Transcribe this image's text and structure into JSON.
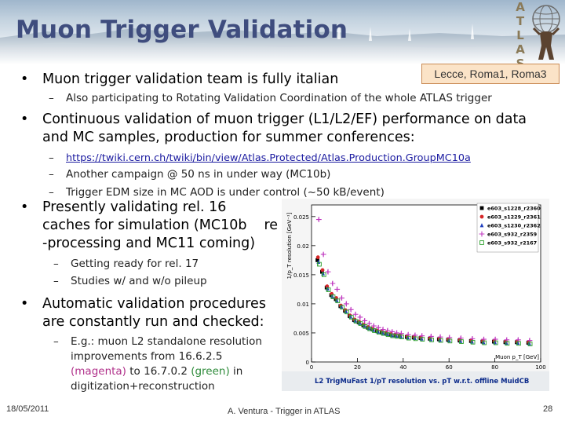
{
  "slide": {
    "title": "Muon Trigger Validation",
    "atlas_letters": [
      "A",
      "T",
      "L",
      "A",
      "S"
    ],
    "tag": "Lecce, Roma1, Roma3",
    "bullets": [
      {
        "text": "Muon trigger validation team is fully italian",
        "subs": [
          {
            "text": "Also participating to Rotating Validation Coordination of the whole ATLAS trigger"
          }
        ]
      },
      {
        "line1": "Continuous validation of muon trigger (L1/L2/EF) performance on data",
        "line2": "and MC samples, production for summer conferences:",
        "subs": [
          {
            "text": "https://twiki.cern.ch/twiki/bin/view/Atlas.Protected/Atlas.Production.GroupMC10a"
          },
          {
            "text": "Another campaign @ 50 ns in under way (MC10b)"
          },
          {
            "text": "Trigger EDM size in MC AOD is under control (~50 kB/event)"
          }
        ]
      },
      {
        "line1": "Presently validating rel. 16",
        "line2": "caches for simulation (MC10b",
        "line2b": "re",
        "line3": "-processing and MC11 coming)",
        "subs": [
          {
            "text": "Getting ready for rel. 17"
          },
          {
            "text": "Studies w/ and w/o pileup"
          }
        ]
      },
      {
        "line1": "Automatic validation procedures",
        "line2": "are constantly run and checked:",
        "sub": {
          "l1": "E.g.: muon L2 standalone resolution",
          "l2": "improvements from 16.6.2.5",
          "l3a": "(magenta)",
          "l3b": " to 16.7.0.2 ",
          "l3c": "(green)",
          "l3d": " in",
          "l4": "digitization+reconstruction"
        }
      }
    ],
    "footer": {
      "date": "18/05/2011",
      "center": "A. Ventura - Trigger in ATLAS",
      "page": "28"
    }
  },
  "colors": {
    "title": "#3f4d7e",
    "tag_bg": "#fbe3c7",
    "tag_border": "#c98a54",
    "plot_bg": "#f5f5f5",
    "caption_bg": "#e9ecef",
    "caption_text": "#0b2a8a"
  },
  "chart_data": {
    "type": "scatter",
    "ylabel": "1/p_T resolution [GeV⁻¹]",
    "xlabel": "Muon p_T [GeV]",
    "caption": "L2 TrigMuFast 1/pT resolution vs. pT w.r.t. offline MuidCB",
    "xlim": [
      0,
      100
    ],
    "ylim": [
      0,
      0.027
    ],
    "yticks": [
      0,
      0.005,
      0.01,
      0.015,
      0.02,
      0.025
    ],
    "ytick_labels": [
      "0",
      "0.005",
      "0.01",
      "0.015",
      "0.02",
      "0.025"
    ],
    "xticks": [
      0,
      20,
      40,
      60,
      80,
      100
    ],
    "xtick_labels": [
      "0",
      "20",
      "40",
      "60",
      "80",
      "100"
    ],
    "legend_position": "top-right",
    "series": [
      {
        "name": "e603_s1228_r2360",
        "color": "#000000",
        "marker": "square",
        "x": [
          3,
          5,
          7,
          9,
          11,
          13,
          15,
          17,
          19,
          21,
          23,
          25,
          27,
          29,
          31,
          33,
          35,
          37,
          39,
          42,
          45,
          48,
          52,
          56,
          60,
          65,
          70,
          75,
          80,
          85,
          90,
          95
        ],
        "y": [
          0.0175,
          0.0155,
          0.0128,
          0.0115,
          0.0108,
          0.0096,
          0.0088,
          0.0079,
          0.0072,
          0.0068,
          0.0063,
          0.0059,
          0.0056,
          0.0053,
          0.0051,
          0.0049,
          0.0047,
          0.0046,
          0.0045,
          0.0043,
          0.0042,
          0.0041,
          0.004,
          0.0039,
          0.0038,
          0.0037,
          0.0036,
          0.0035,
          0.0035,
          0.0034,
          0.0034,
          0.0033
        ]
      },
      {
        "name": "e603_s1229_r2361",
        "color": "#d62728",
        "marker": "circle",
        "x": [
          3,
          5,
          7,
          9,
          11,
          13,
          15,
          17,
          19,
          21,
          23,
          25,
          27,
          29,
          31,
          33,
          35,
          37,
          39,
          42,
          45,
          48,
          52,
          56,
          60,
          65,
          70,
          75,
          80,
          85,
          90,
          95
        ],
        "y": [
          0.018,
          0.0158,
          0.013,
          0.0117,
          0.011,
          0.0097,
          0.0089,
          0.008,
          0.0073,
          0.0069,
          0.0064,
          0.006,
          0.0057,
          0.0054,
          0.0052,
          0.005,
          0.0048,
          0.0047,
          0.0046,
          0.0044,
          0.0043,
          0.0042,
          0.0041,
          0.004,
          0.0039,
          0.0038,
          0.0037,
          0.0036,
          0.0036,
          0.0035,
          0.0035,
          0.0034
        ]
      },
      {
        "name": "e603_s1230_r2362",
        "color": "#1f3fbf",
        "marker": "triangle",
        "x": [
          3,
          5,
          7,
          9,
          11,
          13,
          15,
          17,
          19,
          21,
          23,
          25,
          27,
          29,
          31,
          33,
          35,
          37,
          39,
          42,
          45,
          48,
          52,
          56,
          60,
          65,
          70,
          75,
          80,
          85,
          90,
          95
        ],
        "y": [
          0.0172,
          0.0152,
          0.0126,
          0.0113,
          0.0106,
          0.0095,
          0.0087,
          0.0078,
          0.0071,
          0.0067,
          0.0062,
          0.0058,
          0.0055,
          0.0052,
          0.005,
          0.0048,
          0.0046,
          0.0045,
          0.0044,
          0.0042,
          0.0041,
          0.004,
          0.0039,
          0.0038,
          0.0037,
          0.0036,
          0.0035,
          0.0034,
          0.0034,
          0.0033,
          0.0033,
          0.0032
        ]
      },
      {
        "name": "e603_s932_r2359",
        "color": "#c03ac0",
        "marker": "cross",
        "x": [
          3,
          5,
          7,
          9,
          11,
          13,
          15,
          17,
          19,
          21,
          23,
          25,
          27,
          29,
          31,
          33,
          35,
          37,
          39,
          42,
          45,
          48,
          52,
          56,
          60,
          65,
          70,
          75,
          80,
          85,
          90,
          95
        ],
        "y": [
          0.0245,
          0.0185,
          0.0155,
          0.0135,
          0.0125,
          0.011,
          0.01,
          0.009,
          0.0082,
          0.0077,
          0.0071,
          0.0066,
          0.0062,
          0.0059,
          0.0056,
          0.0054,
          0.0052,
          0.005,
          0.0049,
          0.0047,
          0.0046,
          0.0045,
          0.0044,
          0.0043,
          0.0042,
          0.0041,
          0.004,
          0.0039,
          0.0039,
          0.0038,
          0.0038,
          0.0037
        ]
      },
      {
        "name": "e603_s932_r2167",
        "color": "#2ca02c",
        "marker": "open-square",
        "x": [
          3,
          5,
          7,
          9,
          11,
          13,
          15,
          17,
          19,
          21,
          23,
          25,
          27,
          29,
          31,
          33,
          35,
          37,
          39,
          42,
          45,
          48,
          52,
          56,
          60,
          65,
          70,
          75,
          80,
          85,
          90,
          95
        ],
        "y": [
          0.0168,
          0.015,
          0.0124,
          0.0112,
          0.0105,
          0.0094,
          0.0086,
          0.0077,
          0.007,
          0.0066,
          0.0061,
          0.0057,
          0.0054,
          0.0051,
          0.0049,
          0.0047,
          0.0045,
          0.0044,
          0.0043,
          0.0041,
          0.004,
          0.0039,
          0.0038,
          0.0037,
          0.0036,
          0.0035,
          0.0034,
          0.0033,
          0.0033,
          0.0032,
          0.0032,
          0.0031
        ]
      }
    ]
  }
}
